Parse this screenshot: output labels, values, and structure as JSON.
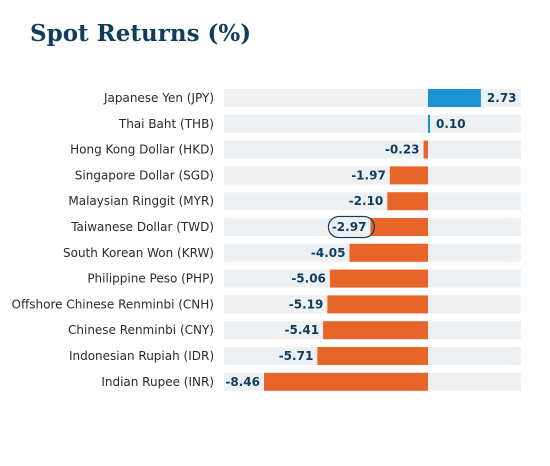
{
  "chart_data": {
    "type": "bar",
    "orientation": "horizontal",
    "title": "Spot Returns (%)",
    "categories": [
      "Japanese Yen (JPY)",
      "Thai Baht (THB)",
      "Hong Kong Dollar (HKD)",
      "Singapore Dollar (SGD)",
      "Malaysian Ringgit (MYR)",
      "Taiwanese Dollar (TWD)",
      "South Korean Won (KRW)",
      "Philippine Peso (PHP)",
      "Offshore Chinese Renminbi (CNH)",
      "Chinese Renminbi (CNY)",
      "Indonesian Rupiah (IDR)",
      "Indian Rupee (INR)"
    ],
    "values": [
      2.73,
      0.1,
      -0.23,
      -1.97,
      -2.1,
      -2.97,
      -4.05,
      -5.06,
      -5.19,
      -5.41,
      -5.71,
      -8.46
    ],
    "value_labels": [
      "2.73",
      "0.10",
      "-0.23",
      "-1.97",
      "-2.10",
      "-2.97",
      "-4.05",
      "-5.06",
      "-5.19",
      "-5.41",
      "-5.71",
      "-8.46"
    ],
    "highlighted_category": "Taiwanese Dollar (TWD)",
    "xlim": [
      -8.46,
      2.73
    ],
    "grid": false,
    "colors": {
      "positive": "#1b93d2",
      "negative": "#e8652a",
      "track": "#eef1f4",
      "title": "#0f3d5c",
      "value_label": "#0f3d5c",
      "highlight_ring": "#0f3d5c"
    }
  }
}
